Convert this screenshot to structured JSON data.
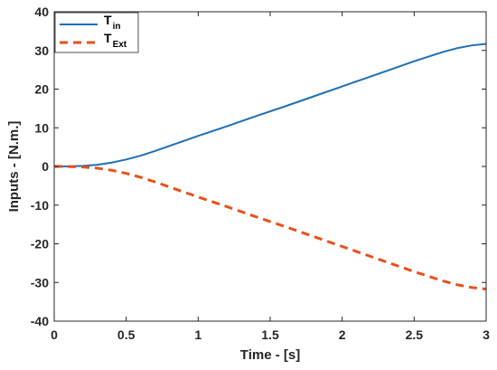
{
  "chart_data": {
    "type": "line",
    "xlabel": "Time - [s]",
    "ylabel": "Inputs - [N.m.]",
    "xlim": [
      0,
      3
    ],
    "ylim": [
      -40,
      40
    ],
    "x_ticks": [
      0,
      0.5,
      1,
      1.5,
      2,
      2.5,
      3
    ],
    "x_tick_labels": [
      "0",
      "0.5",
      "1",
      "1.5",
      "2",
      "2.5",
      "3"
    ],
    "y_ticks": [
      -40,
      -30,
      -20,
      -10,
      0,
      10,
      20,
      30,
      40
    ],
    "y_tick_labels": [
      "-40",
      "-30",
      "-20",
      "-10",
      "0",
      "10",
      "20",
      "30",
      "40"
    ],
    "grid": false,
    "legend_position": "top-left",
    "x": [
      0,
      0.1,
      0.2,
      0.3,
      0.4,
      0.5,
      0.6,
      0.7,
      0.8,
      0.9,
      1.0,
      1.2,
      1.4,
      1.6,
      1.8,
      2.0,
      2.2,
      2.4,
      2.5,
      2.6,
      2.7,
      2.8,
      2.9,
      3.0
    ],
    "series": [
      {
        "name_main": "T",
        "name_sub": "in",
        "color": "#1f6fb2",
        "style": "solid",
        "values": [
          0,
          0.02,
          0.15,
          0.45,
          1.0,
          1.8,
          2.8,
          4.0,
          5.3,
          6.6,
          7.9,
          10.4,
          13.0,
          15.5,
          18.1,
          20.7,
          23.3,
          25.9,
          27.2,
          28.4,
          29.6,
          30.6,
          31.3,
          31.7
        ]
      },
      {
        "name_main": "T",
        "name_sub": "Ext",
        "color": "#e8501a",
        "style": "dashed",
        "values": [
          0,
          -0.02,
          -0.15,
          -0.45,
          -1.0,
          -1.8,
          -2.8,
          -4.0,
          -5.3,
          -6.6,
          -7.9,
          -10.4,
          -13.0,
          -15.5,
          -18.1,
          -20.7,
          -23.3,
          -25.9,
          -27.2,
          -28.4,
          -29.6,
          -30.6,
          -31.3,
          -31.7
        ]
      }
    ]
  }
}
